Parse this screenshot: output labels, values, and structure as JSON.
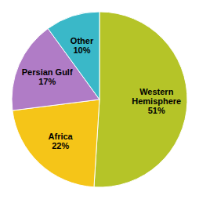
{
  "chart_data": {
    "type": "pie",
    "categories": [
      "Western\nHemisphere\n51%",
      "Africa\n22%",
      "Persian Gulf\n17%",
      "Other\n10%"
    ],
    "values": [
      51,
      22,
      17,
      10
    ],
    "colors": [
      "#b5c428",
      "#f5c518",
      "#b07cc6",
      "#3ab8c8"
    ]
  }
}
